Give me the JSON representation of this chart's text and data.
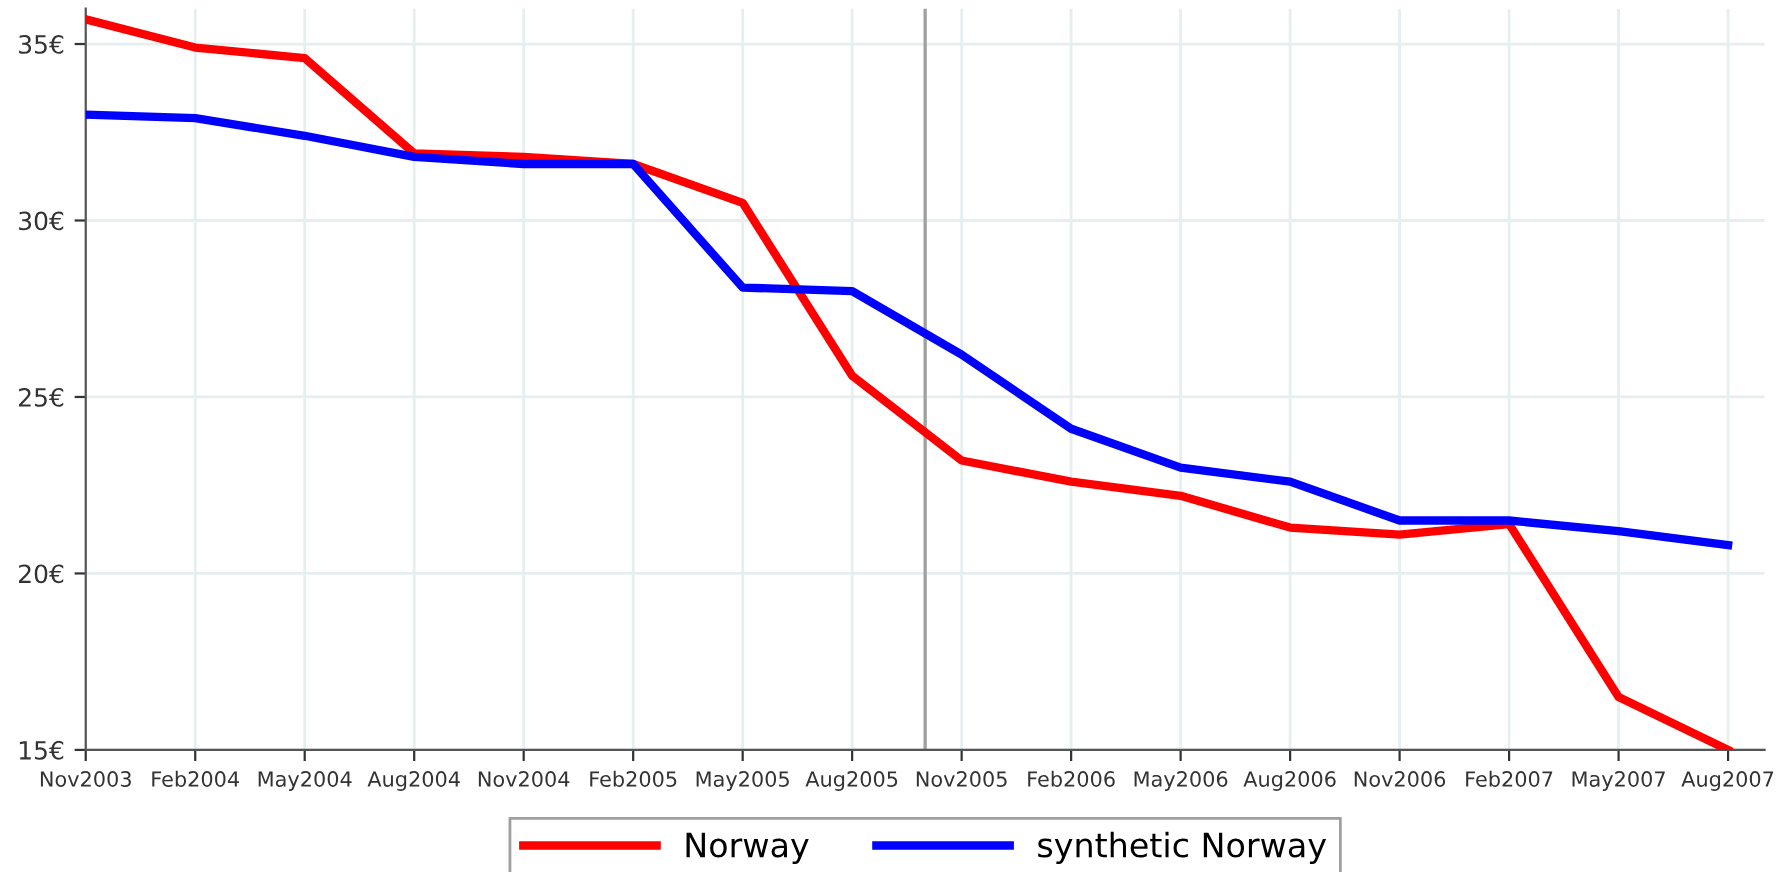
{
  "chart_data": {
    "type": "line",
    "x": [
      "2003-11",
      "2004-02",
      "2004-05",
      "2004-08",
      "2004-11",
      "2005-02",
      "2005-05",
      "2005-08",
      "2005-11",
      "2006-02",
      "2006-05",
      "2006-08",
      "2006-11",
      "2007-02",
      "2007-05",
      "2007-08"
    ],
    "series": [
      {
        "name": "Norway",
        "color": "#ff0000",
        "values": [
          35.7,
          34.9,
          34.6,
          31.9,
          31.8,
          31.6,
          30.5,
          25.6,
          23.2,
          22.6,
          22.2,
          21.3,
          21.1,
          21.4,
          16.5,
          15.0
        ]
      },
      {
        "name": "synthetic Norway",
        "color": "#0000ff",
        "values": [
          33.0,
          32.9,
          32.4,
          31.8,
          31.6,
          31.6,
          28.1,
          28.0,
          26.2,
          24.1,
          23.0,
          22.6,
          21.5,
          21.5,
          21.2,
          20.8
        ]
      }
    ],
    "xlim": [
      "2003-11",
      "2007-09"
    ],
    "xticks": [
      {
        "value": "2003-11",
        "label": "Nov2003"
      },
      {
        "value": "2004-02",
        "label": "Feb2004"
      },
      {
        "value": "2004-05",
        "label": "May2004"
      },
      {
        "value": "2004-08",
        "label": "Aug2004"
      },
      {
        "value": "2004-11",
        "label": "Nov2004"
      },
      {
        "value": "2005-02",
        "label": "Feb2005"
      },
      {
        "value": "2005-05",
        "label": "May2005"
      },
      {
        "value": "2005-08",
        "label": "Aug2005"
      },
      {
        "value": "2005-11",
        "label": "Nov2005"
      },
      {
        "value": "2006-02",
        "label": "Feb2006"
      },
      {
        "value": "2006-05",
        "label": "May2006"
      },
      {
        "value": "2006-08",
        "label": "Aug2006"
      },
      {
        "value": "2006-11",
        "label": "Nov2006"
      },
      {
        "value": "2007-02",
        "label": "Feb2007"
      },
      {
        "value": "2007-05",
        "label": "May2007"
      },
      {
        "value": "2007-08",
        "label": "Aug2007"
      }
    ],
    "ylim": [
      15,
      36
    ],
    "yticks": [
      {
        "value": 15,
        "label": "15€"
      },
      {
        "value": 20,
        "label": "20€"
      },
      {
        "value": 25,
        "label": "25€"
      },
      {
        "value": 30,
        "label": "30€"
      },
      {
        "value": 35,
        "label": "35€"
      }
    ],
    "ref_lines": [
      {
        "axis": "x",
        "value": "2005-10",
        "color": "#a0a0a0"
      }
    ],
    "grid": true,
    "legend": "bottom",
    "line_style": "solid",
    "marker": "none"
  }
}
